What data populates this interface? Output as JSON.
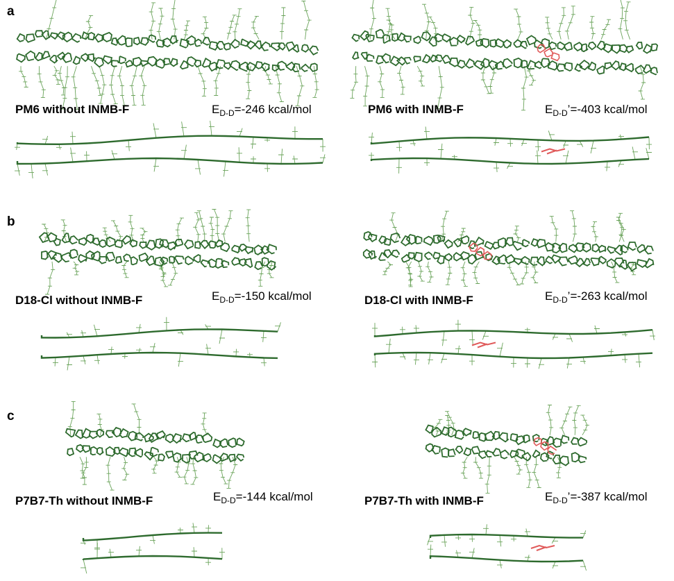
{
  "panels": [
    {
      "label": "a",
      "left": {
        "caption": "PM6 without INMB-F",
        "energy": {
          "symbol": "E",
          "subscript": "D-D",
          "text": "=-246 kcal/mol"
        }
      },
      "right": {
        "caption": "PM6 with INMB-F",
        "energy": {
          "symbol": "E",
          "subscript": "D-D",
          "text": "’=-403 kcal/mol"
        }
      }
    },
    {
      "label": "b",
      "left": {
        "caption": "D18-Cl without INMB-F",
        "energy": {
          "symbol": "E",
          "subscript": "D-D",
          "text": "=-150 kcal/mol"
        }
      },
      "right": {
        "caption": "D18-Cl with INMB-F",
        "energy": {
          "symbol": "E",
          "subscript": "D-D",
          "text": "’=-263 kcal/mol"
        }
      }
    },
    {
      "label": "c",
      "left": {
        "caption": "P7B7-Th without INMB-F",
        "energy": {
          "symbol": "E",
          "subscript": "D-D",
          "text": "=-144 kcal/mol"
        }
      },
      "right": {
        "caption": "P7B7-Th with INMB-F",
        "energy": {
          "symbol": "E",
          "subscript": "D-D",
          "text": "’=-387 kcal/mol"
        }
      }
    }
  ]
}
